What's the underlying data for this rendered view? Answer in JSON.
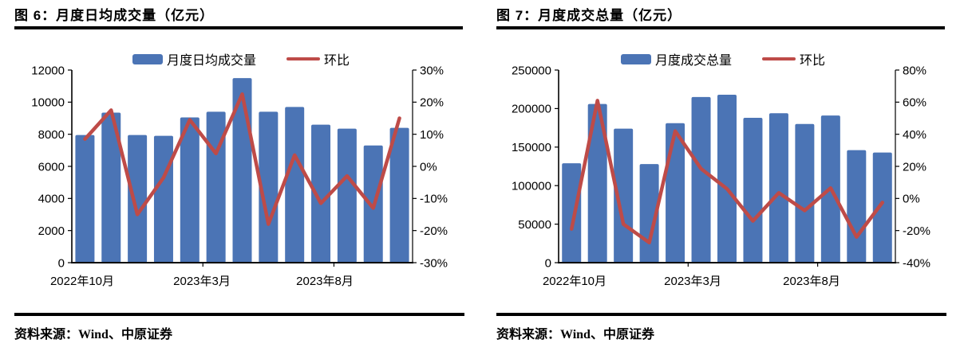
{
  "colors": {
    "bar": "#4b74b5",
    "line": "#be4b48",
    "axis": "#000000",
    "text": "#000000",
    "rule": "#000000"
  },
  "panels": [
    {
      "title": "图 6：月度日均成交量（亿元）",
      "legend_bar_label": "月度日均成交量",
      "legend_line_label": "环比",
      "source": "资料来源：Wind、中原证券"
    },
    {
      "title": "图 7：月度成交总量（亿元）",
      "legend_bar_label": "月度成交总量",
      "legend_line_label": "环比",
      "source": "资料来源：Wind、中原证券"
    }
  ],
  "chart_data": [
    {
      "type": "bar",
      "title": "图 6：月度日均成交量（亿元）",
      "categories": [
        "2022-10",
        "2022-11",
        "2022-12",
        "2023-01",
        "2023-02",
        "2023-03",
        "2023-04",
        "2023-05",
        "2023-06",
        "2023-07",
        "2023-08",
        "2023-09",
        "2023-10"
      ],
      "series": [
        {
          "name": "月度日均成交量",
          "type": "bar",
          "axis": "left",
          "values": [
            7950,
            9350,
            7950,
            7900,
            9050,
            9400,
            11500,
            9400,
            9700,
            8600,
            8350,
            7300,
            8400
          ]
        },
        {
          "name": "环比",
          "type": "line",
          "axis": "right",
          "values": [
            8.5,
            17.5,
            -15,
            -3.5,
            14.5,
            4,
            22.5,
            -18,
            3.5,
            -11.5,
            -3,
            -13,
            15
          ]
        }
      ],
      "left_axis": {
        "min": 0,
        "max": 12000,
        "step": 2000
      },
      "right_axis": {
        "min": -30,
        "max": 30,
        "step": 10,
        "format": "percent"
      },
      "x_tick_labels": [
        "2022年10月",
        "2023年3月",
        "2023年8月"
      ],
      "grid": false,
      "legend_position": "top"
    },
    {
      "type": "bar",
      "title": "图 7：月度成交总量（亿元）",
      "categories": [
        "2022-10",
        "2022-11",
        "2022-12",
        "2023-01",
        "2023-02",
        "2023-03",
        "2023-04",
        "2023-05",
        "2023-06",
        "2023-07",
        "2023-08",
        "2023-09",
        "2023-10"
      ],
      "series": [
        {
          "name": "月度成交总量",
          "type": "bar",
          "axis": "left",
          "values": [
            129000,
            206000,
            174000,
            128000,
            181000,
            215000,
            218000,
            188000,
            194000,
            180000,
            191000,
            146000,
            143000
          ]
        },
        {
          "name": "环比",
          "type": "line",
          "axis": "right",
          "values": [
            -19,
            61,
            -16,
            -27.5,
            42,
            18.5,
            6,
            -14,
            3.5,
            -7.5,
            6.5,
            -24,
            -2.5
          ]
        }
      ],
      "left_axis": {
        "min": 0,
        "max": 250000,
        "step": 50000
      },
      "right_axis": {
        "min": -40,
        "max": 80,
        "step": 20,
        "format": "percent"
      },
      "x_tick_labels": [
        "2022年10月",
        "2023年3月",
        "2023年8月"
      ],
      "grid": false,
      "legend_position": "top"
    }
  ]
}
